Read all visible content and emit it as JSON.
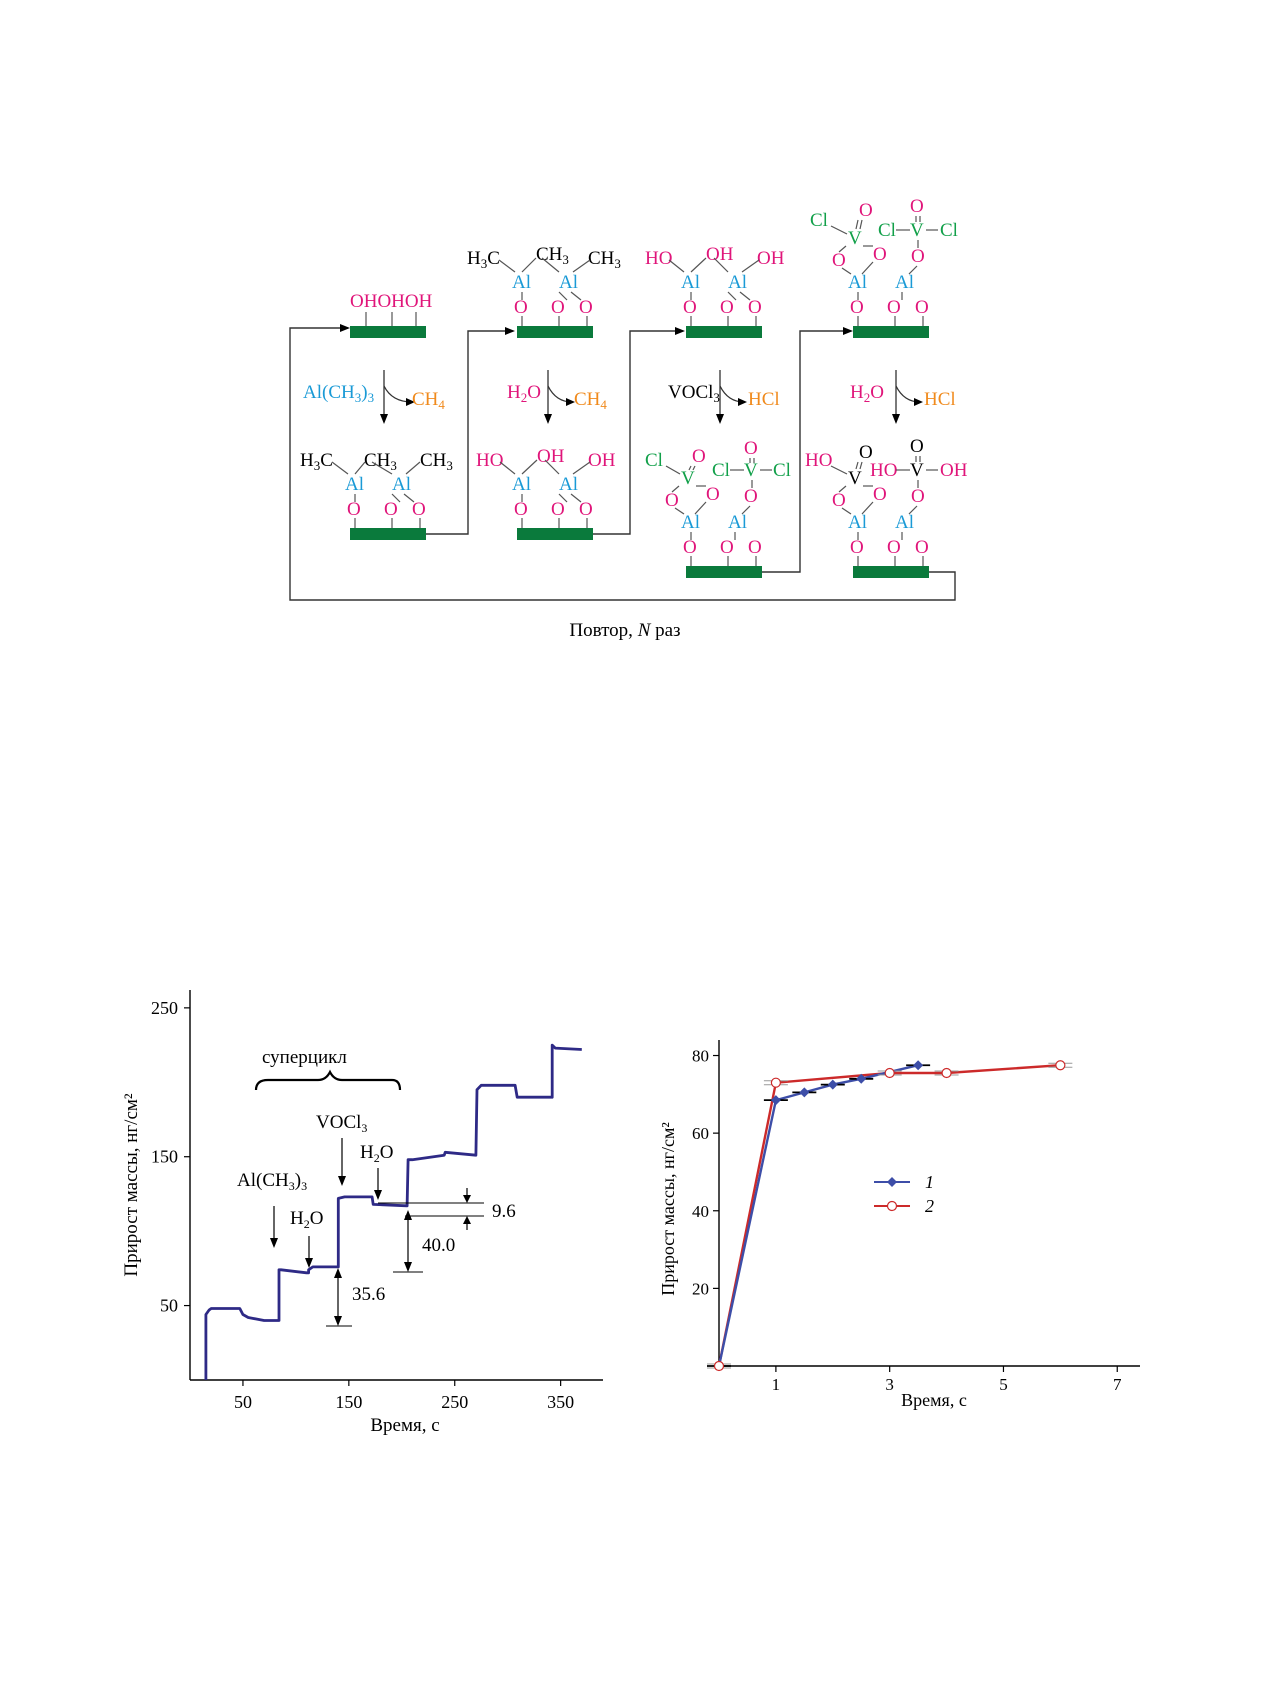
{
  "scheme": {
    "caption": "Повтор, N раз",
    "caption_prefix": "Повтор, ",
    "caption_italic": "N",
    "caption_suffix": " раз",
    "colors": {
      "substrate": "#0a7a3c",
      "oxygen_hydroxyl": "#e0157a",
      "aluminum": "#1a9ad6",
      "vanadium_chlorine": "#12a04a",
      "byproduct": "#f08a1c",
      "text": "#000000"
    },
    "states": [
      {
        "id": "s1",
        "labels": [
          "OHOHOH"
        ]
      },
      {
        "id": "s2",
        "labels": [
          "H3C",
          "CH3",
          "CH3",
          "Al",
          "Al",
          "O",
          "O",
          "O"
        ]
      },
      {
        "id": "s3",
        "labels": [
          "HO",
          "OH",
          "OH",
          "Al",
          "Al",
          "O",
          "O",
          "O"
        ]
      },
      {
        "id": "s4",
        "labels": [
          "Cl",
          "O",
          "V",
          "O",
          "O",
          "Cl",
          "V",
          "Cl",
          "O",
          "Al",
          "Al",
          "O",
          "O",
          "O"
        ]
      }
    ],
    "reactions": [
      {
        "reagent": "Al(CH3)3",
        "product": "CH4"
      },
      {
        "reagent": "H2O",
        "product": "CH4"
      },
      {
        "reagent": "VOCl3",
        "product": "HCl"
      },
      {
        "reagent": "H2O",
        "product": "HCl"
      }
    ]
  },
  "chart_data": [
    {
      "type": "line",
      "xlabel": "Время, с",
      "ylabel": "Прирост массы, нг/см²",
      "xticks": [
        50,
        150,
        250,
        350
      ],
      "yticks": [
        50,
        150,
        250
      ],
      "xlim": [
        0,
        390
      ],
      "ylim": [
        0,
        262
      ],
      "line_color": "#2e2a86",
      "annotations": {
        "supercycle": "суперцикл",
        "reagent_1": "Al(CH3)3",
        "reagent_2": "H2O",
        "reagent_3": "VOCl3",
        "reagent_4": "H2O",
        "step_1": "35.6",
        "step_2": "40.0",
        "step_3": "9.6"
      },
      "series": [
        {
          "x": [
            15,
            15,
            18,
            20,
            47,
            50,
            55,
            70,
            84,
            84,
            86,
            110,
            112,
            112,
            116,
            140,
            140,
            146,
            172,
            173,
            205,
            206,
            210,
            240,
            241,
            270,
            271,
            275,
            307,
            309,
            342,
            342,
            345,
            370
          ],
          "y": [
            0,
            44,
            47,
            48,
            48,
            44,
            42,
            40,
            40,
            74,
            74,
            72,
            72,
            74,
            76,
            76,
            122,
            123,
            123,
            118,
            117,
            148,
            148,
            151,
            153,
            151,
            195,
            198,
            198,
            190,
            190,
            225,
            223,
            222
          ]
        }
      ]
    },
    {
      "type": "line",
      "xlabel": "Время, с",
      "ylabel": "Прирост массы, нг/см²",
      "xticks": [
        1,
        3,
        5,
        7
      ],
      "yticks": [
        20,
        40,
        60,
        80
      ],
      "xlim": [
        0,
        7.4
      ],
      "ylim": [
        0,
        84
      ],
      "legend_position": "center",
      "series": [
        {
          "name": "1",
          "color": "#3d4ea8",
          "marker": "diamond",
          "x": [
            0,
            1,
            1.5,
            2,
            2.5,
            3.5
          ],
          "y": [
            0,
            68.5,
            70.5,
            72.5,
            74,
            77.5
          ]
        },
        {
          "name": "2",
          "color": "#cc2a2a",
          "marker": "circle-open",
          "x": [
            0,
            1,
            3,
            4,
            6
          ],
          "y": [
            0,
            73,
            75.5,
            75.5,
            77.5
          ]
        }
      ]
    }
  ]
}
